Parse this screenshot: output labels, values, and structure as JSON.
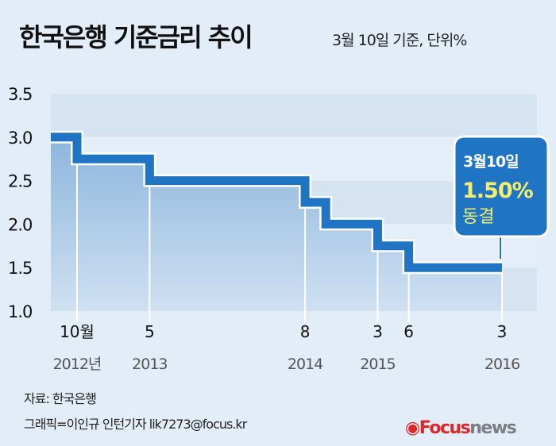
{
  "header": {
    "title": "한국은행 기준금리 추이",
    "subtitle": "3월 10일 기준, 단위%"
  },
  "chart_data": {
    "type": "line",
    "step": true,
    "title": "한국은행 기준금리 추이",
    "ylabel": "",
    "ylim": [
      1.0,
      3.5
    ],
    "yticks": [
      "3.5",
      "3.0",
      "2.5",
      "2.0",
      "1.5",
      "1.0"
    ],
    "grid": "horizontal bands",
    "series": [
      {
        "points": [
          {
            "date": "start",
            "value": 3.0
          },
          {
            "date": "2012-10",
            "value": 2.75
          },
          {
            "date": "2013-05",
            "value": 2.5
          },
          {
            "date": "2014-08",
            "value": 2.25
          },
          {
            "date": "2014-10",
            "value": 2.0
          },
          {
            "date": "2015-03",
            "value": 1.75
          },
          {
            "date": "2015-06",
            "value": 1.5
          },
          {
            "date": "2016-03",
            "value": 1.5
          }
        ]
      }
    ],
    "xticks": [
      {
        "date": "2012-10",
        "month": "10월",
        "year": "2012년"
      },
      {
        "date": "2013-05",
        "month": "5",
        "year": "2013"
      },
      {
        "date": "2014-08",
        "month": "8",
        "year": "2014"
      },
      {
        "date": "2015-03",
        "month": "3",
        "year": "2015"
      },
      {
        "date": "2015-06",
        "month": "6",
        "year": ""
      },
      {
        "date": "2016-03",
        "month": "3",
        "year": "2016"
      }
    ],
    "annotation": {
      "date": "3월10일",
      "value": "1.50%",
      "note": "동결"
    },
    "colors": {
      "line": "#1f74c4",
      "callout": "#1f74c4",
      "highlight": "#f2ee6b",
      "background": "#e3edf7"
    }
  },
  "footer": {
    "source": "자료: 한국은행",
    "credit": "그래픽=이인규 인턴기자 lik7273@focus.kr",
    "logo_left": "Focus",
    "logo_right": "news"
  }
}
